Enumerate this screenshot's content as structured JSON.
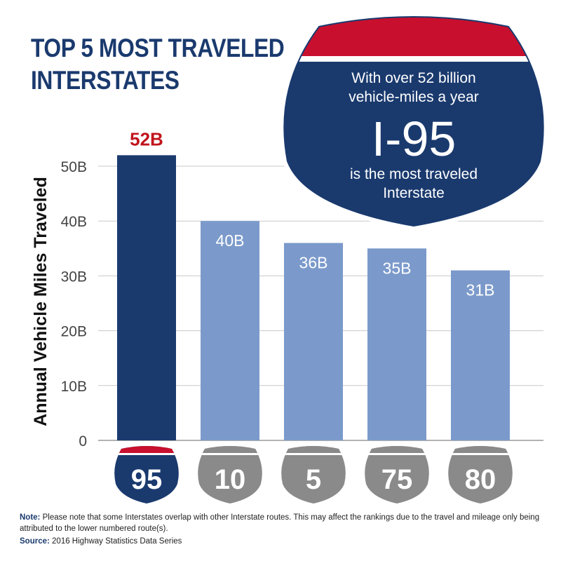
{
  "title": {
    "line1": "TOP 5 MOST TRAVELED",
    "line2": "INTERSTATES"
  },
  "callout": {
    "line1": "With over 52 billion",
    "line2": "vehicle-miles a year",
    "highlight": "I-95",
    "line3": "is the most traveled",
    "line4": "Interstate"
  },
  "note": {
    "label": "Note:",
    "text": "Please note that some Interstates overlap with other Interstate routes.  This may affect the rankings due to the travel and mileage only being attributed to the lower numbered route(s)."
  },
  "source": {
    "label": "Source:",
    "text": "2016 Highway Statistics Data Series"
  },
  "colors": {
    "title": "#1a3a6e",
    "primary_bar": "#1a3a6e",
    "secondary_bar": "#7b9acb",
    "highlight_label": "#c0141c",
    "shield_red": "#c8102e",
    "shield_grey": "#8a8a8a",
    "grid": "#c8c8c8"
  },
  "chart_data": {
    "type": "bar",
    "categories": [
      "95",
      "10",
      "5",
      "75",
      "80"
    ],
    "values": [
      52,
      40,
      36,
      35,
      31
    ],
    "data_labels": [
      "52B",
      "40B",
      "36B",
      "35B",
      "31B"
    ],
    "highlight_index": 0,
    "xlabel": "",
    "ylabel": "Annual Vehicle Miles Traveled",
    "ylim": [
      0,
      52
    ],
    "yticks": [
      0,
      10,
      20,
      30,
      40,
      50
    ],
    "ytick_labels": [
      "0",
      "10B",
      "20B",
      "30B",
      "40B",
      "50B"
    ],
    "grid": true
  }
}
